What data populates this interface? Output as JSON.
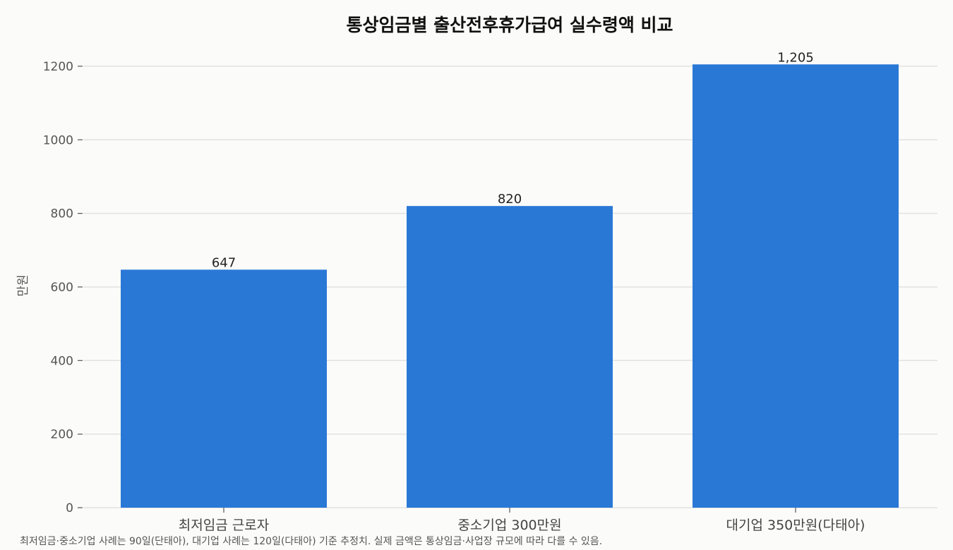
{
  "chart_data": {
    "type": "bar",
    "title": "통상임금별 출산전후휴가급여 실수령액 비교",
    "xlabel": "",
    "ylabel": "만원",
    "categories": [
      "최저임금 근로자",
      "중소기업 300만원",
      "대기업 350만원(다태아)"
    ],
    "values": [
      647,
      820,
      1205
    ],
    "value_labels": [
      "647",
      "820",
      "1,205"
    ],
    "yticks": [
      0,
      200,
      400,
      600,
      800,
      1000,
      1200
    ],
    "ylim": [
      0,
      1265
    ],
    "grid": "horizontal",
    "bar_color": "#2a78d6"
  },
  "footnote": "최저임금·중소기업 사례는 90일(단태아), 대기업 사례는 120일(다태아) 기준 추정치. 실제 금액은 통상임금·사업장 규모에 따라 다를 수 있음."
}
